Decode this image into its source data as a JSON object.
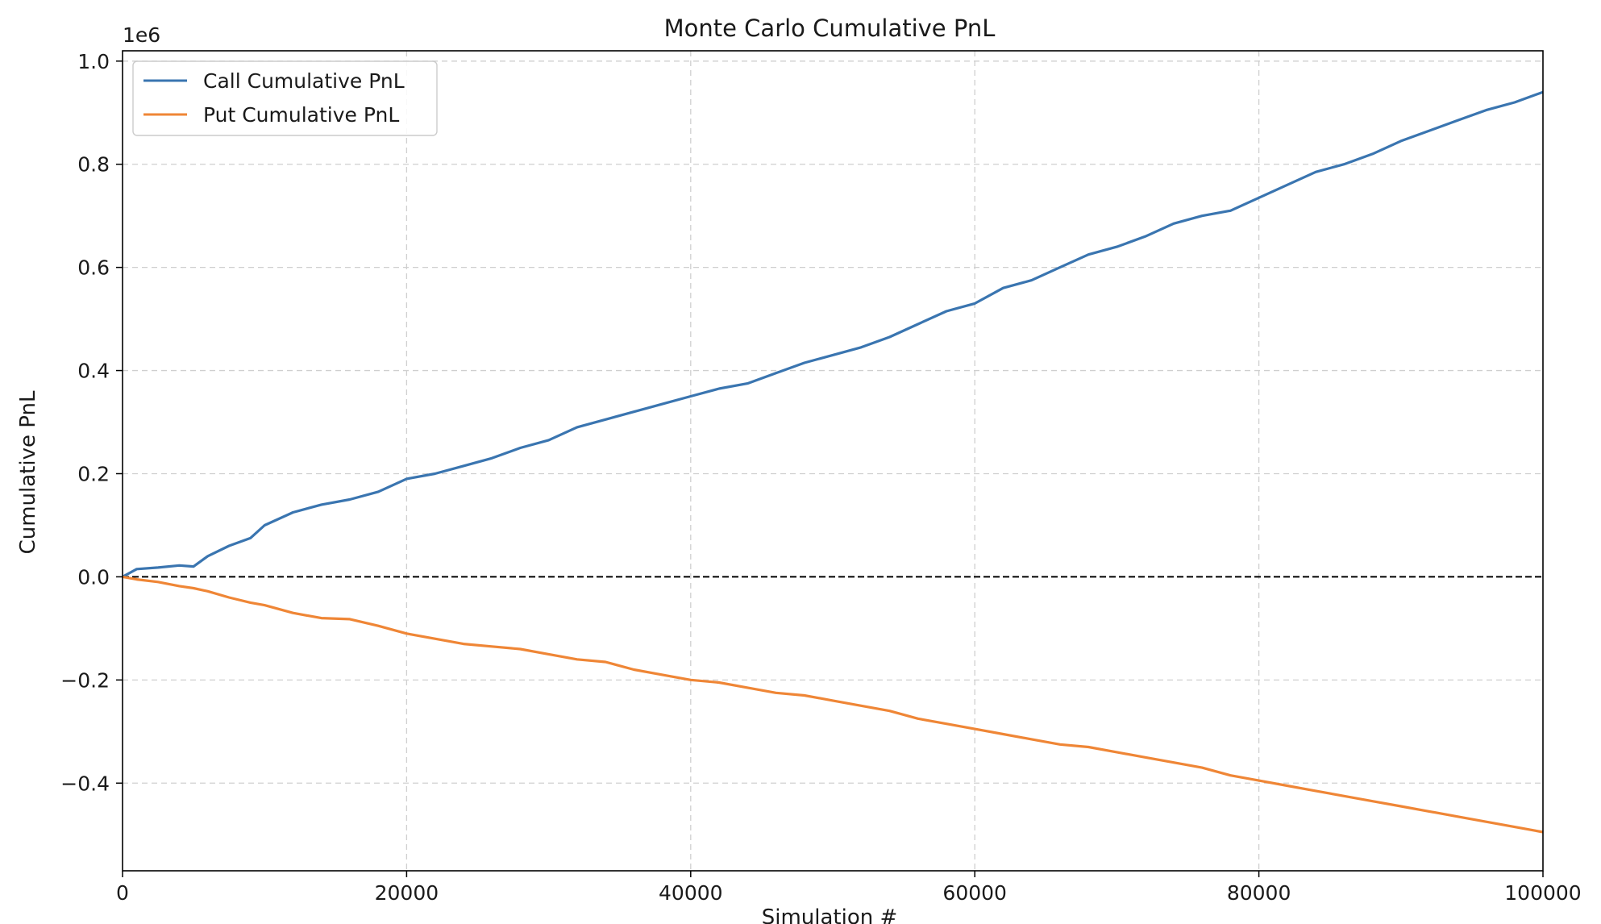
{
  "chart_data": {
    "type": "line",
    "title": "Monte Carlo Cumulative PnL",
    "xlabel": "Simulation #",
    "ylabel": "Cumulative PnL",
    "y_offset_label": "1e6",
    "xlim": [
      0,
      100000
    ],
    "ylim": [
      -0.57,
      1.02
    ],
    "y_scale_factor": 1000000,
    "x_ticks": [
      0,
      20000,
      40000,
      60000,
      80000,
      100000
    ],
    "x_tick_labels": [
      "0",
      "20000",
      "40000",
      "60000",
      "80000",
      "100000"
    ],
    "y_ticks": [
      -0.4,
      -0.2,
      0.0,
      0.2,
      0.4,
      0.6,
      0.8,
      1.0
    ],
    "y_tick_labels": [
      "−0.4",
      "−0.2",
      "0.0",
      "0.2",
      "0.4",
      "0.6",
      "0.8",
      "1.0"
    ],
    "grid": true,
    "legend_position": "top-left",
    "reference_line": {
      "y": 0.0,
      "style": "dashed",
      "color": "#000000"
    },
    "series": [
      {
        "name": "Call Cumulative PnL",
        "color": "#3a75b0",
        "x": [
          0,
          1000,
          2500,
          4000,
          5000,
          6000,
          7500,
          9000,
          10000,
          12000,
          14000,
          16000,
          18000,
          20000,
          22000,
          24000,
          26000,
          28000,
          30000,
          32000,
          34000,
          36000,
          38000,
          40000,
          42000,
          44000,
          46000,
          48000,
          50000,
          52000,
          54000,
          56000,
          58000,
          60000,
          62000,
          64000,
          66000,
          68000,
          70000,
          72000,
          74000,
          76000,
          78000,
          80000,
          82000,
          84000,
          86000,
          88000,
          90000,
          92000,
          94000,
          96000,
          98000,
          100000
        ],
        "y": [
          0.0,
          0.015,
          0.018,
          0.022,
          0.02,
          0.04,
          0.06,
          0.075,
          0.1,
          0.125,
          0.14,
          0.15,
          0.165,
          0.19,
          0.2,
          0.215,
          0.23,
          0.25,
          0.265,
          0.29,
          0.305,
          0.32,
          0.335,
          0.35,
          0.365,
          0.375,
          0.395,
          0.415,
          0.43,
          0.445,
          0.465,
          0.49,
          0.515,
          0.53,
          0.56,
          0.575,
          0.6,
          0.625,
          0.64,
          0.66,
          0.685,
          0.7,
          0.71,
          0.735,
          0.76,
          0.785,
          0.8,
          0.82,
          0.845,
          0.865,
          0.885,
          0.905,
          0.92,
          0.94
        ]
      },
      {
        "name": "Put Cumulative PnL",
        "color": "#ef8636",
        "x": [
          0,
          1000,
          2500,
          4000,
          5000,
          6000,
          7500,
          9000,
          10000,
          12000,
          14000,
          16000,
          18000,
          20000,
          22000,
          24000,
          26000,
          28000,
          30000,
          32000,
          34000,
          36000,
          38000,
          40000,
          42000,
          44000,
          46000,
          48000,
          50000,
          52000,
          54000,
          56000,
          58000,
          60000,
          62000,
          64000,
          66000,
          68000,
          70000,
          72000,
          74000,
          76000,
          78000,
          80000,
          82000,
          84000,
          86000,
          88000,
          90000,
          92000,
          94000,
          96000,
          98000,
          100000
        ],
        "y": [
          0.0,
          -0.005,
          -0.01,
          -0.018,
          -0.022,
          -0.028,
          -0.04,
          -0.05,
          -0.055,
          -0.07,
          -0.08,
          -0.082,
          -0.095,
          -0.11,
          -0.12,
          -0.13,
          -0.135,
          -0.14,
          -0.15,
          -0.16,
          -0.165,
          -0.18,
          -0.19,
          -0.2,
          -0.205,
          -0.215,
          -0.225,
          -0.23,
          -0.24,
          -0.25,
          -0.26,
          -0.275,
          -0.285,
          -0.295,
          -0.305,
          -0.315,
          -0.325,
          -0.33,
          -0.34,
          -0.35,
          -0.36,
          -0.37,
          -0.385,
          -0.395,
          -0.405,
          -0.415,
          -0.425,
          -0.435,
          -0.445,
          -0.455,
          -0.465,
          -0.475,
          -0.485,
          -0.495
        ]
      }
    ]
  }
}
